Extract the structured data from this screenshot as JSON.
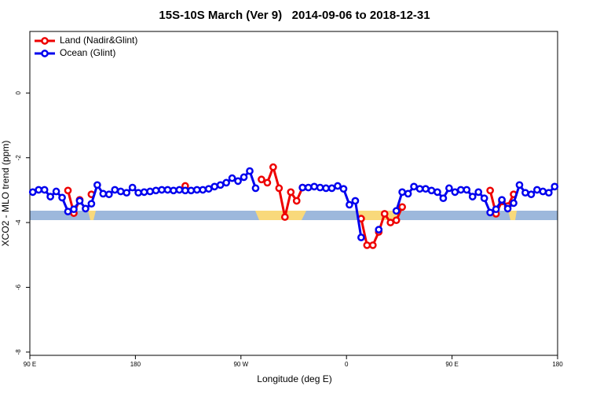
{
  "chart_data": {
    "type": "line",
    "title": "15S-10S March (Ver 9)   2014-09-06 to 2018-12-31",
    "x_label": "Longitude (deg E)",
    "y_label": "XCO2 - MLO trend (ppm)",
    "legend": "top-left",
    "x": [
      92.5,
      97.5,
      102.5,
      107.5,
      112.5,
      117.5,
      122.5,
      127.5,
      132.5,
      137.5,
      142.5,
      147.5,
      152.5,
      157.5,
      162.5,
      167.5,
      172.5,
      177.5,
      182.5,
      187.5,
      192.5,
      197.5,
      202.5,
      207.5,
      212.5,
      217.5,
      222.5,
      227.5,
      232.5,
      237.5,
      242.5,
      247.5,
      252.5,
      257.5,
      262.5,
      267.5,
      272.5,
      277.5,
      282.5,
      287.5,
      292.5,
      297.5,
      302.5,
      307.5,
      312.5,
      317.5,
      322.5,
      327.5,
      332.5,
      337.5,
      342.5,
      347.5,
      352.5,
      357.5,
      362.5,
      367.5,
      372.5,
      377.5,
      382.5,
      387.5,
      392.5,
      397.5,
      402.5,
      407.5,
      412.5,
      417.5,
      422.5,
      427.5,
      432.5,
      437.5,
      442.5,
      447.5,
      452.5,
      457.5,
      462.5,
      467.5,
      472.5,
      477.5,
      482.5,
      487.5,
      492.5,
      497.5,
      502.5,
      507.5,
      512.5,
      517.5,
      522.5,
      527.5,
      532.5,
      537.5
    ],
    "series": [
      {
        "name": "Land (Nadir&Glint)",
        "color": "#ee0000",
        "values": [
          null,
          null,
          null,
          null,
          null,
          null,
          -3.01,
          -3.71,
          -3.3,
          null,
          -3.13,
          null,
          null,
          null,
          null,
          null,
          null,
          null,
          null,
          null,
          null,
          null,
          null,
          null,
          null,
          null,
          -2.87,
          null,
          null,
          null,
          null,
          null,
          null,
          null,
          null,
          null,
          null,
          null,
          null,
          -2.67,
          -2.77,
          -2.29,
          -2.94,
          -3.83,
          -3.06,
          -3.33,
          -2.92,
          null,
          null,
          null,
          null,
          null,
          null,
          null,
          null,
          null,
          -3.88,
          -4.7,
          -4.7,
          -4.29,
          -3.73,
          -4,
          -3.93,
          -3.52,
          null,
          null,
          null,
          null,
          null,
          null,
          null,
          null,
          null,
          null,
          null,
          null,
          null,
          null,
          -3.01,
          -3.73,
          -3.35,
          -3.49,
          -3.13,
          null,
          null,
          null,
          null,
          null,
          null,
          null
        ]
      },
      {
        "name": "Ocean (Glint)",
        "color": "#0000ee",
        "values": [
          -3.06,
          -2.99,
          -2.99,
          -3.2,
          -3.04,
          -3.23,
          -3.66,
          -3.59,
          -3.33,
          -3.57,
          -3.42,
          -2.84,
          -3.11,
          -3.13,
          -2.99,
          -3.04,
          -3.08,
          -2.92,
          -3.08,
          -3.06,
          -3.04,
          -3.01,
          -2.99,
          -2.99,
          -3.01,
          -2.99,
          -3.01,
          -3.01,
          -2.99,
          -2.99,
          -2.96,
          -2.89,
          -2.84,
          -2.77,
          -2.63,
          -2.72,
          -2.6,
          -2.41,
          -2.94,
          null,
          null,
          null,
          null,
          null,
          null,
          null,
          -2.92,
          -2.92,
          -2.89,
          -2.92,
          -2.94,
          -2.94,
          -2.87,
          -2.96,
          -3.45,
          -3.33,
          -4.46,
          null,
          null,
          -4.22,
          null,
          null,
          -3.64,
          -3.06,
          -3.11,
          -2.89,
          -2.96,
          -2.96,
          -3.01,
          -3.06,
          -3.25,
          -2.94,
          -3.06,
          -2.99,
          -2.99,
          -3.2,
          -3.06,
          -3.25,
          -3.69,
          -3.59,
          -3.3,
          -3.57,
          -3.4,
          -2.84,
          -3.08,
          -3.13,
          -2.99,
          -3.04,
          -3.08,
          -2.89
        ]
      }
    ],
    "xlim": [
      90,
      540
    ],
    "xticks": [
      {
        "value": 90,
        "label": "90 E"
      },
      180,
      {
        "value": 270,
        "label": "90 W"
      },
      {
        "value": 360,
        "label": "0"
      },
      {
        "value": 450,
        "label": "90 E"
      },
      {
        "value": 540,
        "label": "180"
      }
    ],
    "ylim": [
      -8.1,
      1.9
    ],
    "yticks": [
      0,
      -2,
      -4,
      -6,
      -8
    ]
  }
}
